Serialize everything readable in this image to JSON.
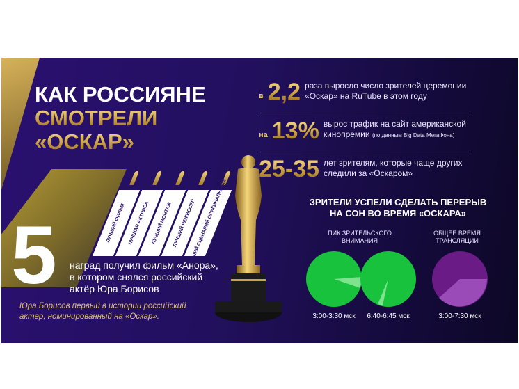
{
  "title": {
    "line1": "КАК РОССИЯНЕ",
    "line2": "СМОТРЕЛИ",
    "line3": "«ОСКАР»"
  },
  "stats": [
    {
      "prefix": "в",
      "value": "2,2",
      "text1": "раза выросло число зрителей церемонии",
      "text2": "«Оскар» на RuTube в этом году"
    },
    {
      "prefix": "на",
      "value": "13%",
      "text1": "вырос трафик на сайт американской",
      "text2": "кинопремии",
      "note": "(по данным Big Data МегаФона)"
    },
    {
      "prefix": "",
      "value": "25-35",
      "text1": "лет зрителям, которые чаще других",
      "text2": "следили за «Оскаром»"
    }
  ],
  "awards": [
    "ЛУЧШИЙ ФИЛЬМ",
    "ЛУЧШАЯ АКТРИСА",
    "ЛУЧШИЙ МОНТАЖ",
    "ЛУЧШИЙ РЕЖИССЕР",
    "ЛУЧШИЙ СЦЕНАРИЙ ОРИГИНАЛЬНЫЙ"
  ],
  "awards_count": "5",
  "anora": {
    "line1": "наград получил фильм «Анора»,",
    "line2": "в котором снялся российский",
    "line3": "актёр Юра Борисов"
  },
  "note": {
    "line1": "Юра Борисов первый в истории российский",
    "line2": "актер, номинированный на «Оскар»."
  },
  "sleep": {
    "title1": "ЗРИТЕЛИ УСПЕЛИ СДЕЛАТЬ ПЕРЕРЫВ",
    "title2": "НА СОН ВО ВРЕМЯ «ОСКАРА»",
    "peak_label1": "ПИК ЗРИТЕЛЬСКОГО",
    "peak_label2": "ВНИМАНИЯ",
    "total_label1": "ОБЩЕЕ ВРЕМЯ",
    "total_label2": "ТРАНСЛЯЦИИ",
    "times": [
      "3:00-3:30 мск",
      "6:40-6:45 мск",
      "3:00-7:30 мск"
    ]
  },
  "colors": {
    "green": "#18c23c",
    "green_light": "#7de38e",
    "purple": "#6a1b86",
    "purple_light": "#9a4bb8",
    "gold": "#d4aa4e",
    "background": "#22105e"
  }
}
